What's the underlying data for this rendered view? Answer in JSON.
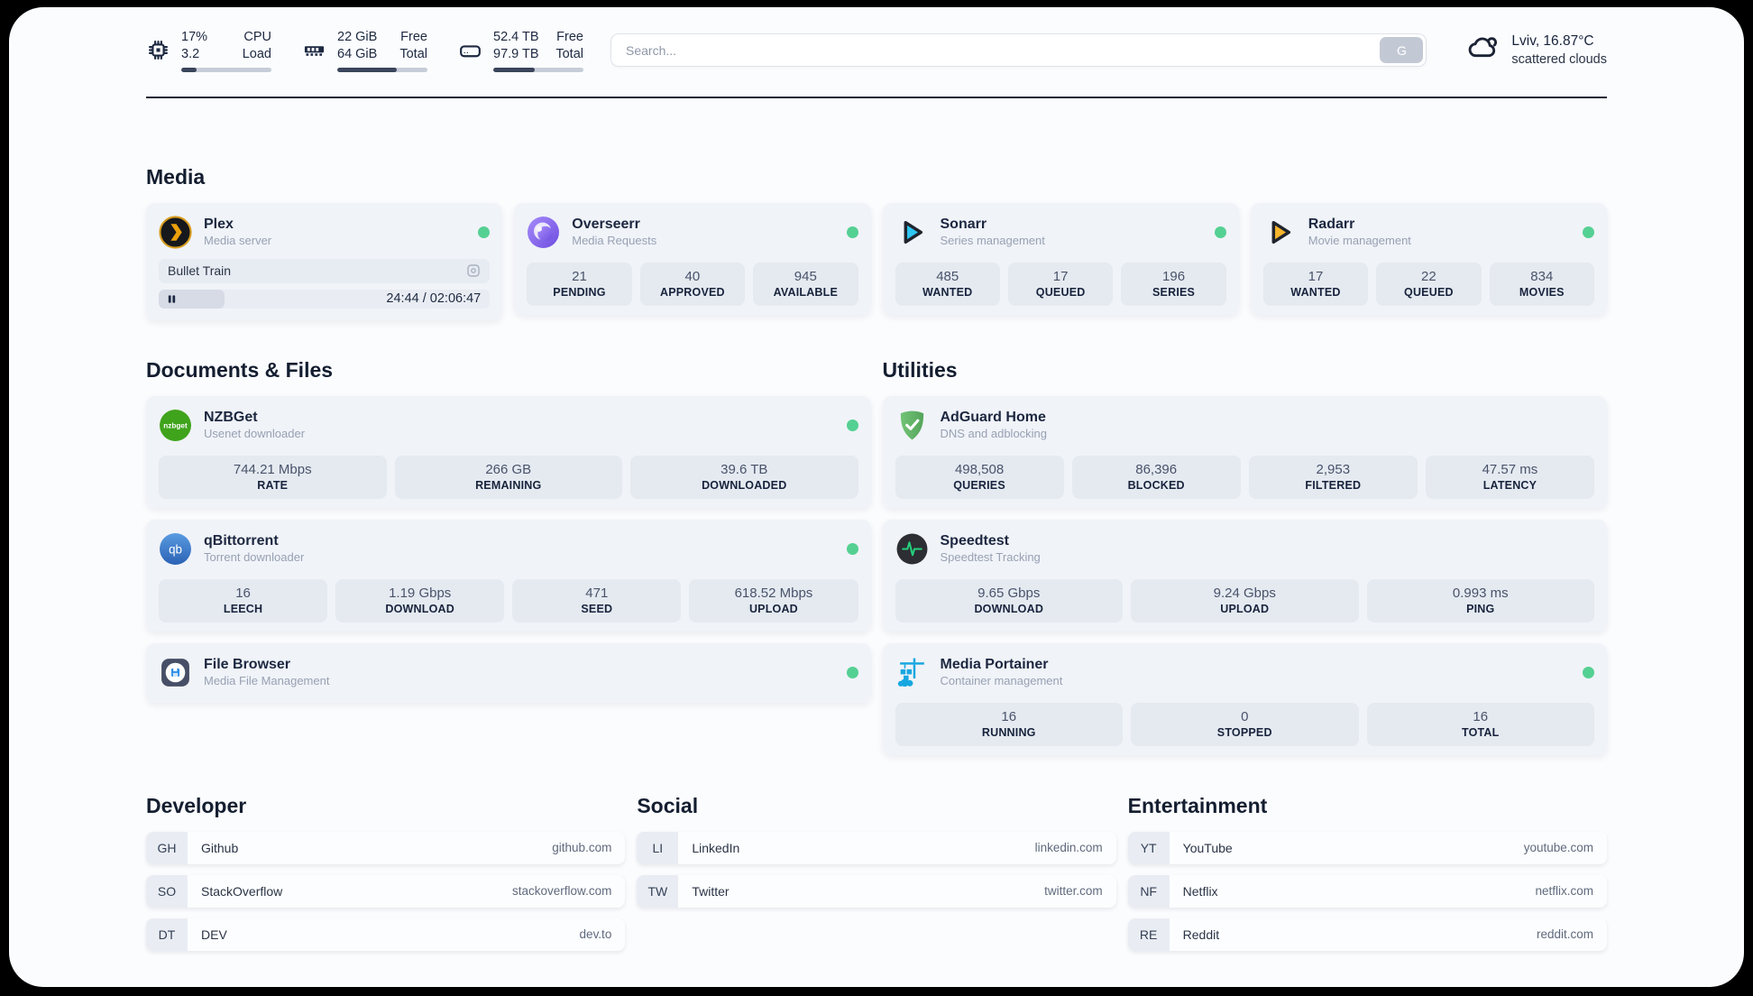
{
  "header": {
    "system_stats": [
      {
        "icon": "cpu-icon",
        "values": [
          "17%",
          "3.2"
        ],
        "labels": [
          "CPU",
          "Load"
        ],
        "progress": 17
      },
      {
        "icon": "ram-icon",
        "values": [
          "22 GiB",
          "64 GiB"
        ],
        "labels": [
          "Free",
          "Total"
        ],
        "progress": 66
      },
      {
        "icon": "disk-icon",
        "values": [
          "52.4 TB",
          "97.9 TB"
        ],
        "labels": [
          "Free",
          "Total"
        ],
        "progress": 46
      }
    ],
    "search": {
      "placeholder": "Search...",
      "button_label": "G"
    },
    "weather": {
      "location": "Lviv, 16.87°C",
      "condition": "scattered clouds"
    }
  },
  "colors": {
    "status_online": "#55d093",
    "accent_dark": "#1d2941"
  },
  "sections": {
    "media": {
      "title": "Media",
      "apps": [
        {
          "name": "Plex",
          "description": "Media server",
          "status": "online",
          "now_playing": {
            "title": "Bullet Train",
            "time": "24:44 / 02:06:47",
            "progress": 20
          }
        },
        {
          "name": "Overseerr",
          "description": "Media Requests",
          "status": "online",
          "stats": [
            {
              "value": "21",
              "label": "PENDING"
            },
            {
              "value": "40",
              "label": "APPROVED"
            },
            {
              "value": "945",
              "label": "AVAILABLE"
            }
          ]
        },
        {
          "name": "Sonarr",
          "description": "Series management",
          "status": "online",
          "stats": [
            {
              "value": "485",
              "label": "WANTED"
            },
            {
              "value": "17",
              "label": "QUEUED"
            },
            {
              "value": "196",
              "label": "SERIES"
            }
          ]
        },
        {
          "name": "Radarr",
          "description": "Movie management",
          "status": "online",
          "stats": [
            {
              "value": "17",
              "label": "WANTED"
            },
            {
              "value": "22",
              "label": "QUEUED"
            },
            {
              "value": "834",
              "label": "MOVIES"
            }
          ]
        }
      ]
    },
    "documents": {
      "title": "Documents & Files",
      "apps": [
        {
          "name": "NZBGet",
          "description": "Usenet downloader",
          "status": "online",
          "stats": [
            {
              "value": "744.21 Mbps",
              "label": "RATE"
            },
            {
              "value": "266 GB",
              "label": "REMAINING"
            },
            {
              "value": "39.6 TB",
              "label": "DOWNLOADED"
            }
          ]
        },
        {
          "name": "qBittorrent",
          "description": "Torrent downloader",
          "status": "online",
          "stats": [
            {
              "value": "16",
              "label": "LEECH"
            },
            {
              "value": "1.19 Gbps",
              "label": "DOWNLOAD"
            },
            {
              "value": "471",
              "label": "SEED"
            },
            {
              "value": "618.52 Mbps",
              "label": "UPLOAD"
            }
          ]
        },
        {
          "name": "File Browser",
          "description": "Media File Management",
          "status": "online"
        }
      ]
    },
    "utilities": {
      "title": "Utilities",
      "apps": [
        {
          "name": "AdGuard Home",
          "description": "DNS and adblocking",
          "stats": [
            {
              "value": "498,508",
              "label": "QUERIES"
            },
            {
              "value": "86,396",
              "label": "BLOCKED"
            },
            {
              "value": "2,953",
              "label": "FILTERED"
            },
            {
              "value": "47.57 ms",
              "label": "LATENCY"
            }
          ]
        },
        {
          "name": "Speedtest",
          "description": "Speedtest Tracking",
          "stats": [
            {
              "value": "9.65 Gbps",
              "label": "DOWNLOAD"
            },
            {
              "value": "9.24 Gbps",
              "label": "UPLOAD"
            },
            {
              "value": "0.993 ms",
              "label": "PING"
            }
          ]
        },
        {
          "name": "Media Portainer",
          "description": "Container management",
          "status": "online",
          "stats": [
            {
              "value": "16",
              "label": "RUNNING"
            },
            {
              "value": "0",
              "label": "STOPPED"
            },
            {
              "value": "16",
              "label": "TOTAL"
            }
          ]
        }
      ]
    },
    "bookmarks": [
      {
        "title": "Developer",
        "links": [
          {
            "abbr": "GH",
            "name": "Github",
            "href": "github.com"
          },
          {
            "abbr": "SO",
            "name": "StackOverflow",
            "href": "stackoverflow.com"
          },
          {
            "abbr": "DT",
            "name": "DEV",
            "href": "dev.to"
          }
        ]
      },
      {
        "title": "Social",
        "links": [
          {
            "abbr": "LI",
            "name": "LinkedIn",
            "href": "linkedin.com"
          },
          {
            "abbr": "TW",
            "name": "Twitter",
            "href": "twitter.com"
          }
        ]
      },
      {
        "title": "Entertainment",
        "links": [
          {
            "abbr": "YT",
            "name": "YouTube",
            "href": "youtube.com"
          },
          {
            "abbr": "NF",
            "name": "Netflix",
            "href": "netflix.com"
          },
          {
            "abbr": "RE",
            "name": "Reddit",
            "href": "reddit.com"
          }
        ]
      }
    ]
  }
}
